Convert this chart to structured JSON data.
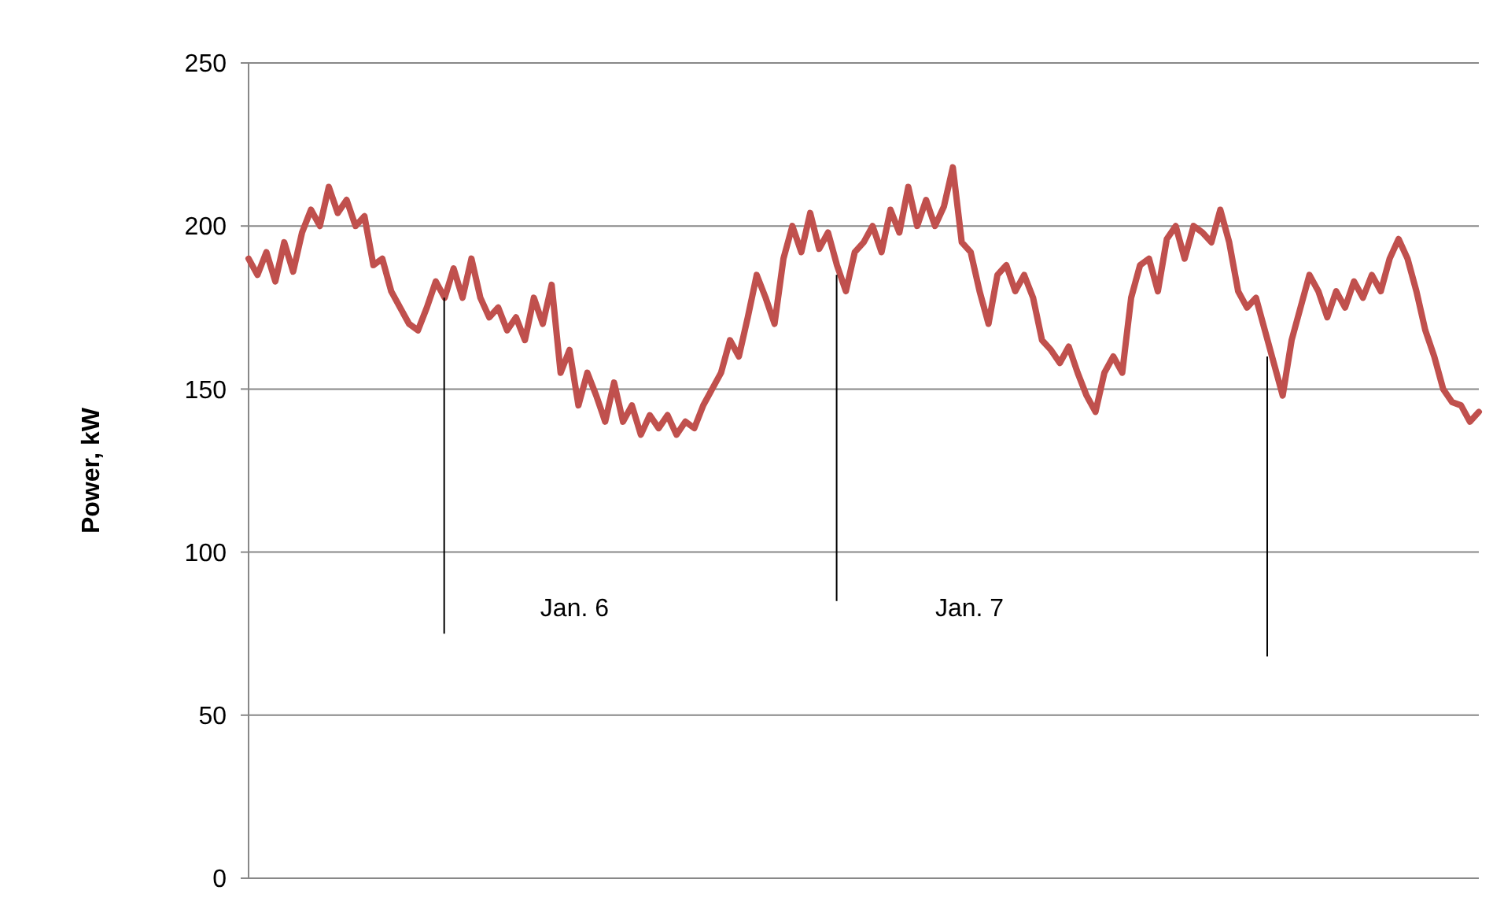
{
  "chart_data": {
    "type": "line",
    "ylabel": "Power, kW",
    "ylim": [
      0,
      250
    ],
    "yticks": [
      0,
      50,
      100,
      150,
      200,
      250
    ],
    "grid": "y",
    "tick_labels": "y",
    "categories": [
      null,
      null,
      null,
      null,
      null,
      null,
      null,
      null,
      null,
      null,
      null,
      null,
      null,
      null,
      null,
      null,
      null,
      null,
      null,
      null,
      null,
      null,
      null,
      null,
      null,
      null,
      null,
      null,
      null,
      null,
      null,
      null,
      null,
      null,
      null,
      null,
      null,
      null,
      null,
      null,
      null,
      null,
      null,
      null,
      null,
      null,
      null,
      null,
      null,
      null,
      null,
      null,
      null,
      null,
      null,
      null,
      null,
      null,
      null,
      null,
      null,
      null,
      null,
      null,
      null,
      null,
      null,
      null,
      null,
      null,
      null,
      null,
      null,
      null,
      null,
      null,
      null,
      null,
      null,
      null,
      null,
      null,
      null,
      null,
      null,
      null,
      null,
      null,
      null,
      null,
      null,
      null,
      null,
      null,
      null,
      null,
      null,
      null,
      null,
      null,
      null,
      null,
      null,
      null,
      null,
      null,
      null,
      null,
      null,
      null,
      null,
      null,
      null,
      null,
      null,
      null,
      null,
      null,
      null,
      null,
      null,
      null,
      null,
      null,
      null,
      null,
      null,
      null,
      null,
      null,
      null,
      null,
      null,
      null,
      null,
      null,
      null,
      null,
      null
    ],
    "series": [
      {
        "color": "#c0504d",
        "values": [
          190,
          185,
          192,
          183,
          195,
          186,
          198,
          205,
          200,
          212,
          204,
          208,
          200,
          203,
          188,
          190,
          180,
          175,
          170,
          168,
          175,
          183,
          178,
          187,
          178,
          190,
          178,
          172,
          175,
          168,
          172,
          165,
          178,
          170,
          182,
          155,
          162,
          145,
          155,
          148,
          140,
          152,
          140,
          145,
          136,
          142,
          138,
          142,
          136,
          140,
          138,
          145,
          150,
          155,
          165,
          160,
          172,
          185,
          178,
          170,
          190,
          200,
          192,
          204,
          193,
          198,
          188,
          180,
          192,
          195,
          200,
          192,
          205,
          198,
          212,
          200,
          208,
          200,
          206,
          218,
          195,
          192,
          180,
          170,
          185,
          188,
          180,
          185,
          178,
          165,
          162,
          158,
          163,
          155,
          148,
          143,
          155,
          160,
          155,
          178,
          188,
          190,
          180,
          196,
          200,
          190,
          200,
          198,
          195,
          205,
          195,
          180,
          175,
          178,
          168,
          158,
          148,
          165,
          175,
          185,
          180,
          172,
          180,
          175,
          183,
          178,
          185,
          180,
          190,
          196,
          190,
          180,
          168,
          160,
          150,
          146,
          145,
          140,
          143
        ]
      }
    ],
    "annotations": [
      "Jan. 6",
      "Jan. 7"
    ]
  }
}
